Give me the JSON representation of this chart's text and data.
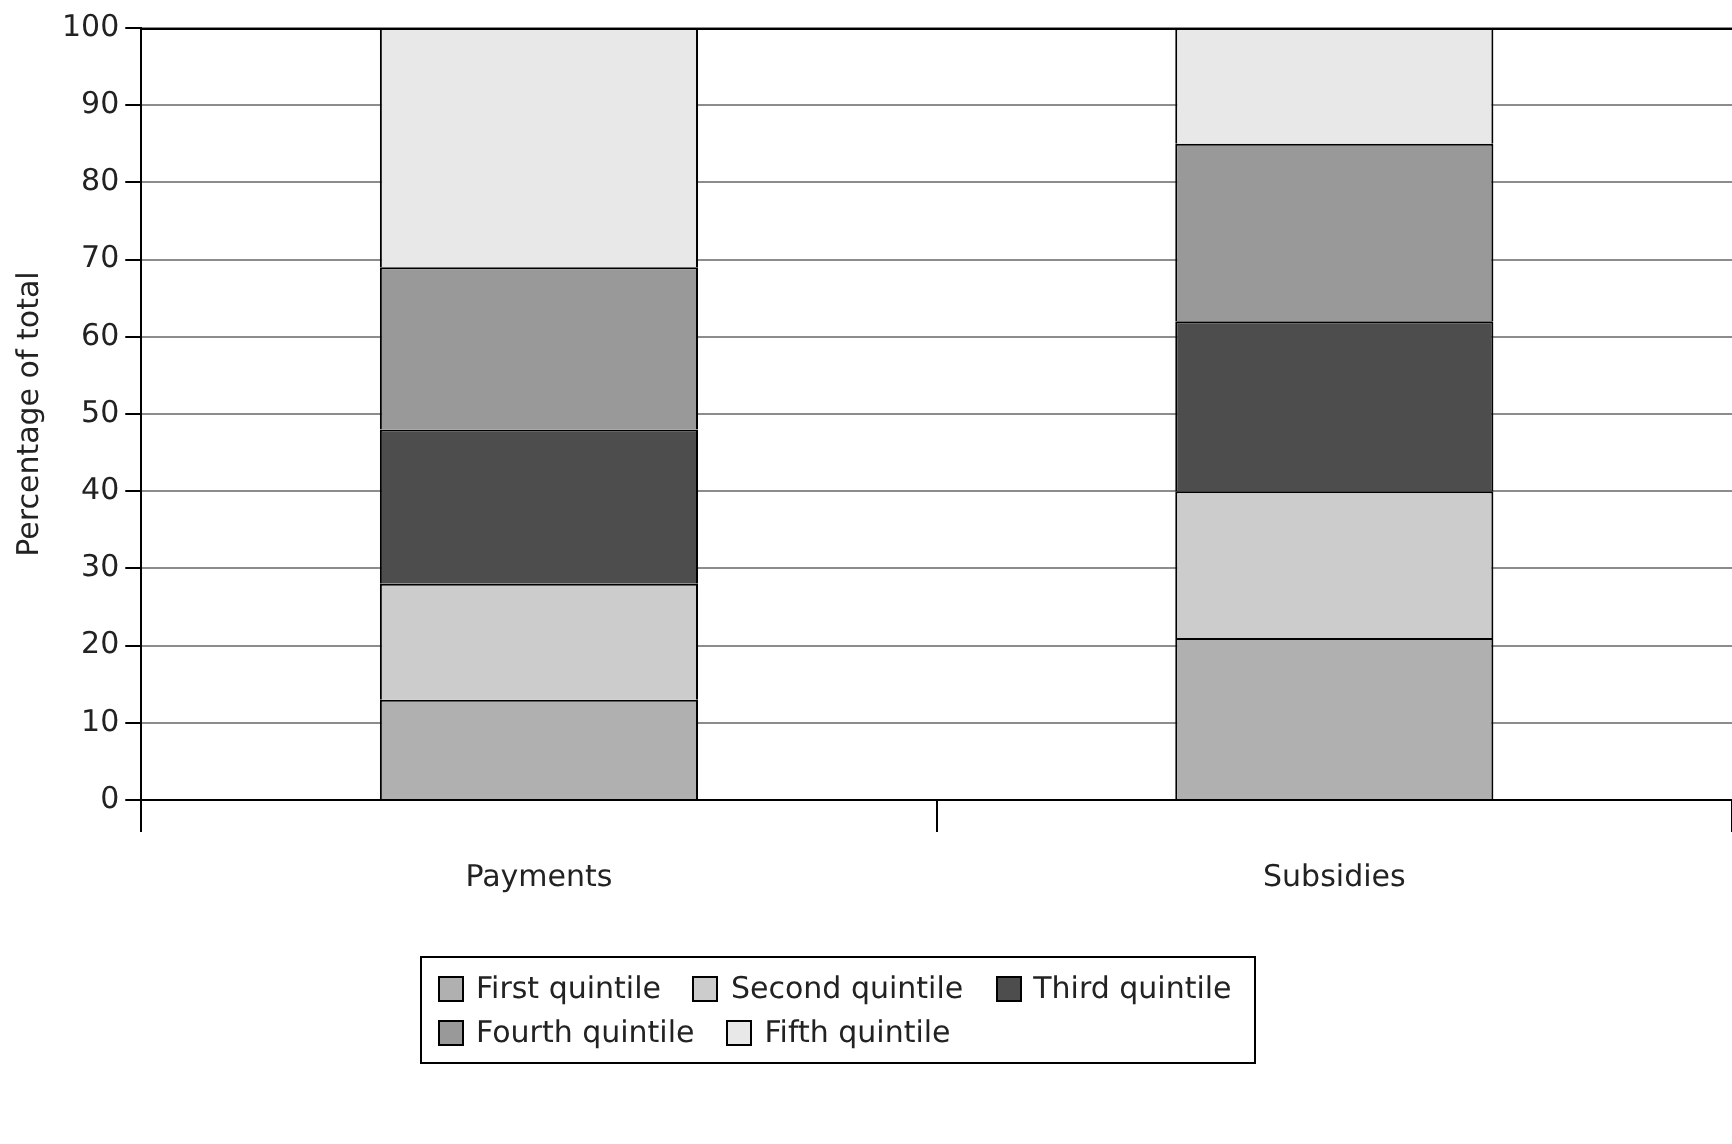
{
  "chart_data": {
    "type": "bar",
    "stacked": true,
    "ylabel": "Percentage of total",
    "categories": [
      "Payments",
      "Subsidies"
    ],
    "series": [
      {
        "name": "First quintile",
        "color": "#b0b0b0",
        "values": [
          13,
          21
        ]
      },
      {
        "name": "Second quintile",
        "color": "#cccccc",
        "values": [
          15,
          19
        ]
      },
      {
        "name": "Third quintile",
        "color": "#4d4d4d",
        "values": [
          20,
          22
        ]
      },
      {
        "name": "Fourth quintile",
        "color": "#999999",
        "values": [
          21,
          23
        ]
      },
      {
        "name": "Fifth quintile",
        "color": "#e8e8e8",
        "values": [
          31,
          15
        ]
      }
    ],
    "ylim": [
      0,
      100
    ],
    "yticks": [
      0,
      10,
      20,
      30,
      40,
      50,
      60,
      70,
      80,
      90,
      100
    ],
    "grid": "y",
    "legend": "bottom"
  }
}
